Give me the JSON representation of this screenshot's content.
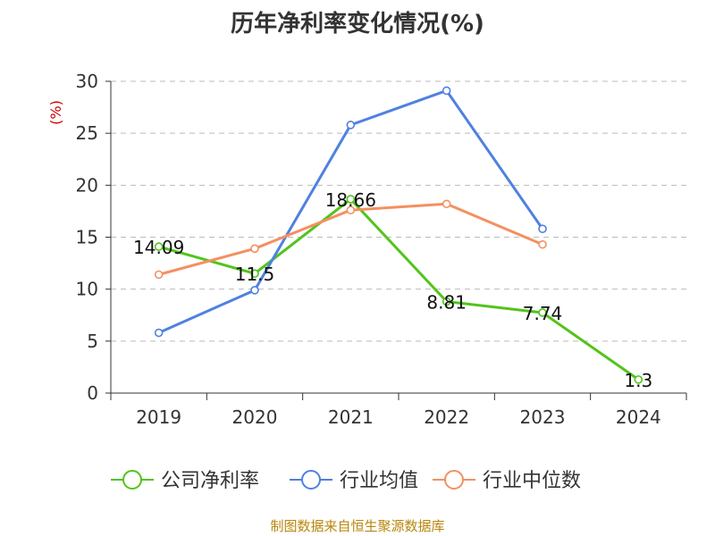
{
  "chart_data": {
    "type": "line",
    "title": "历年净利率变化情况(%)",
    "ylabel": "(%)",
    "xlabel": "",
    "categories": [
      "2019",
      "2020",
      "2021",
      "2022",
      "2023",
      "2024"
    ],
    "ylim": [
      0,
      30
    ],
    "yticks": [
      0,
      5,
      10,
      15,
      20,
      25,
      30
    ],
    "grid": "horizontal-dashed",
    "legend_position": "bottom",
    "series": [
      {
        "name": "公司净利率",
        "color": "#52c41a",
        "values": [
          14.09,
          11.5,
          18.66,
          8.81,
          7.74,
          1.3
        ],
        "data_labels": [
          "14.09",
          "11.5",
          "18.66",
          "8.81",
          "7.74",
          "1.3"
        ]
      },
      {
        "name": "行业均值",
        "color": "#4f81e0",
        "values": [
          5.8,
          9.9,
          25.8,
          29.1,
          15.8,
          null
        ]
      },
      {
        "name": "行业中位数",
        "color": "#f39060",
        "values": [
          11.4,
          13.9,
          17.6,
          18.2,
          14.3,
          null
        ]
      }
    ]
  },
  "footer": {
    "source": "制图数据来自恒生聚源数据库"
  },
  "colors": {
    "axis": "#333333",
    "grid": "#bbbbbb",
    "ylabel": "#cc0000",
    "source": "#b8860b"
  }
}
